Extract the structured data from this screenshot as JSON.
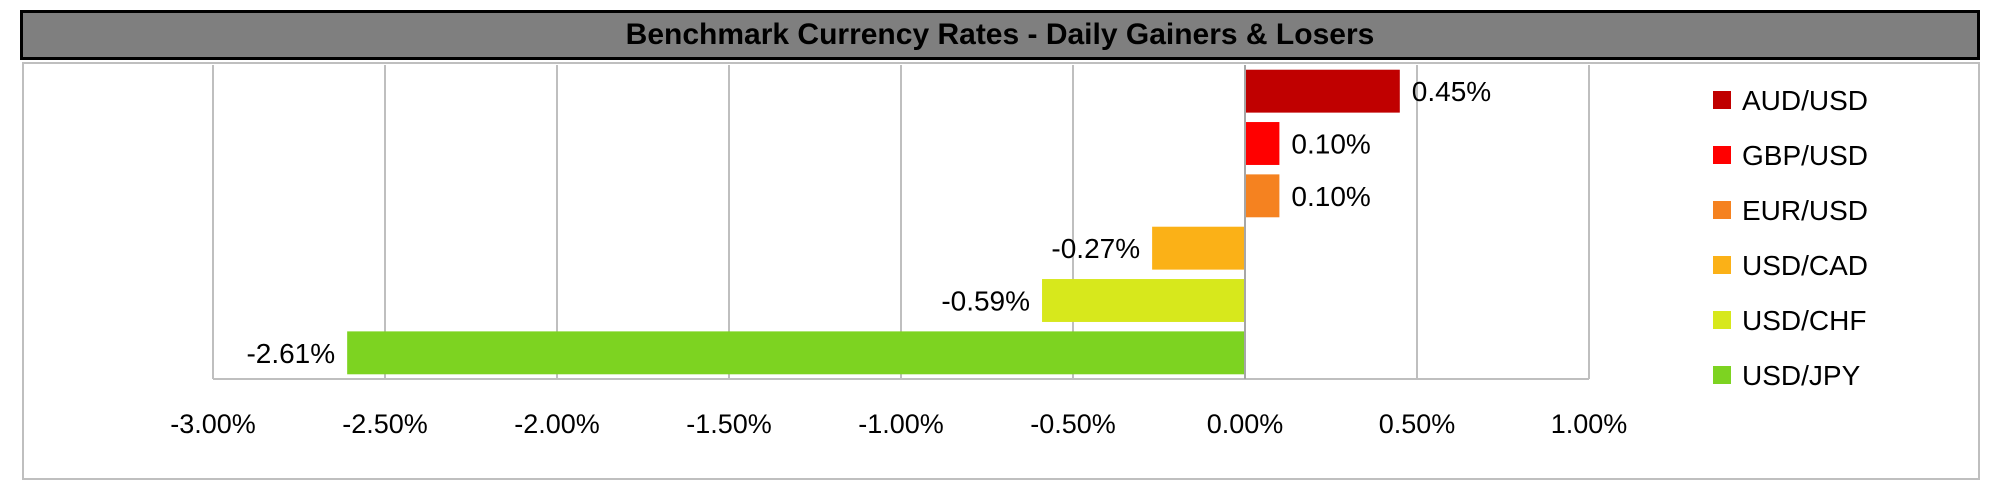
{
  "title": "Benchmark Currency Rates - Daily Gainers & Losers",
  "chart_data": {
    "type": "bar",
    "orientation": "horizontal",
    "title": "Benchmark Currency Rates - Daily Gainers & Losers",
    "categories": [
      "AUD/USD",
      "GBP/USD",
      "EUR/USD",
      "USD/CAD",
      "USD/CHF",
      "USD/JPY"
    ],
    "values": [
      0.45,
      0.1,
      0.1,
      -0.27,
      -0.59,
      -2.61
    ],
    "value_labels": [
      "0.45%",
      "0.10%",
      "0.10%",
      "-0.27%",
      "-0.59%",
      "-2.61%"
    ],
    "colors": [
      "#c00000",
      "#ff0000",
      "#f58220",
      "#fbb117",
      "#d7e81c",
      "#7dd321"
    ],
    "xlim": [
      -3.0,
      1.0
    ],
    "x_ticks": [
      -3.0,
      -2.5,
      -2.0,
      -1.5,
      -1.0,
      -0.5,
      0.0,
      0.5,
      1.0
    ],
    "x_tick_labels": [
      "-3.00%",
      "-2.50%",
      "-2.00%",
      "-1.50%",
      "-1.00%",
      "-0.50%",
      "0.00%",
      "0.50%",
      "1.00%"
    ],
    "xlabel": "",
    "ylabel": "",
    "grid": "vertical",
    "legend": {
      "position": "right",
      "entries": [
        "AUD/USD",
        "GBP/USD",
        "EUR/USD",
        "USD/CAD",
        "USD/CHF",
        "USD/JPY"
      ]
    }
  }
}
